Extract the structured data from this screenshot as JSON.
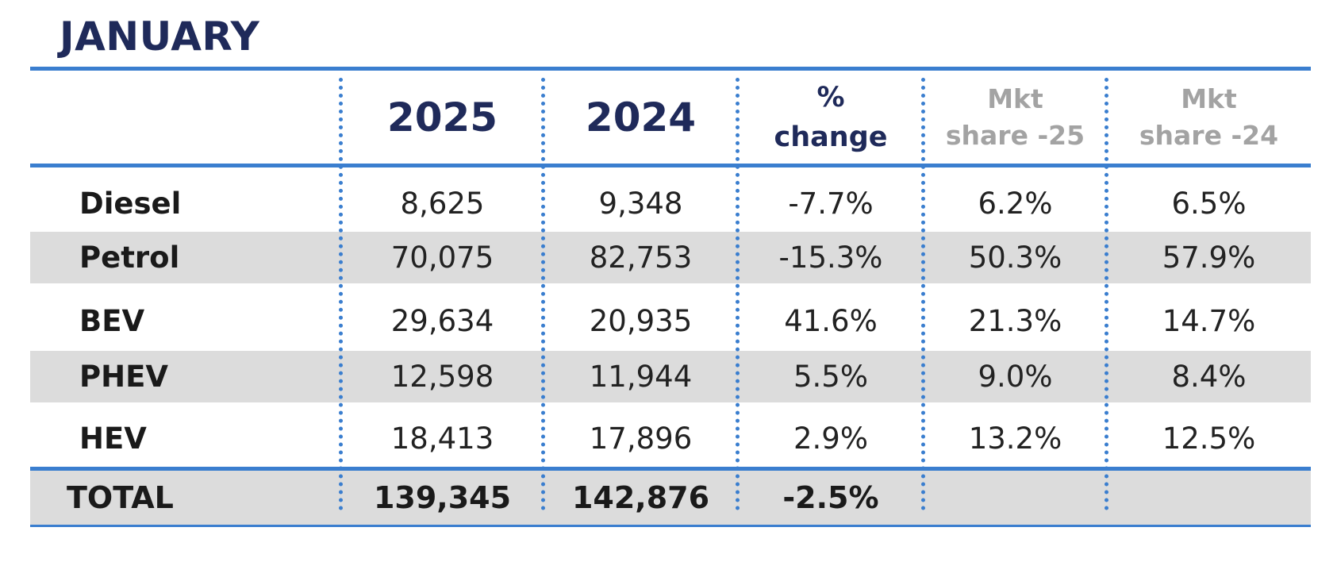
{
  "title": "JANUARY",
  "colors": {
    "rule": "#3a7ecf",
    "band": "#dcdcdc",
    "heading": "#1f2a5a",
    "muted_heading": "#a3a3a3"
  },
  "chart_data": {
    "type": "table",
    "title": "JANUARY",
    "columns": [
      {
        "key": "row",
        "label": ""
      },
      {
        "key": "y2025",
        "label": "2025"
      },
      {
        "key": "y2024",
        "label": "2024"
      },
      {
        "key": "change",
        "label_line1": "%",
        "label_line2": "change"
      },
      {
        "key": "share25",
        "label_line1": "Mkt",
        "label_line2": "share -25"
      },
      {
        "key": "share24",
        "label_line1": "Mkt",
        "label_line2": "share -24"
      }
    ],
    "rows": [
      {
        "label": "Diesel",
        "y2025": "8,625",
        "y2024": "9,348",
        "change": "-7.7%",
        "share25": "6.2%",
        "share24": "6.5%"
      },
      {
        "label": "Petrol",
        "y2025": "70,075",
        "y2024": "82,753",
        "change": "-15.3%",
        "share25": "50.3%",
        "share24": "57.9%"
      },
      {
        "label": "BEV",
        "y2025": "29,634",
        "y2024": "20,935",
        "change": "41.6%",
        "share25": "21.3%",
        "share24": "14.7%"
      },
      {
        "label": "PHEV",
        "y2025": "12,598",
        "y2024": "11,944",
        "change": "5.5%",
        "share25": "9.0%",
        "share24": "8.4%"
      },
      {
        "label": "HEV",
        "y2025": "18,413",
        "y2024": "17,896",
        "change": "2.9%",
        "share25": "13.2%",
        "share24": "12.5%"
      }
    ],
    "total": {
      "label": "TOTAL",
      "y2025": "139,345",
      "y2024": "142,876",
      "change": "-2.5%",
      "share25": "",
      "share24": ""
    }
  }
}
